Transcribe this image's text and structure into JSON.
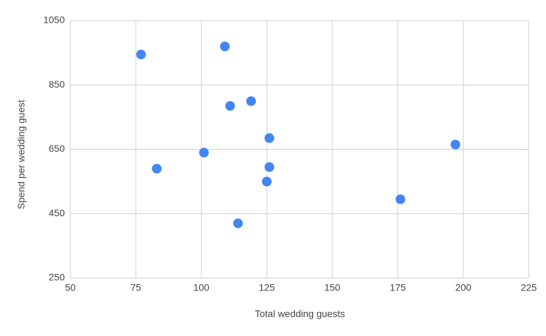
{
  "chart_data": {
    "type": "scatter",
    "x_label": "Total wedding guests",
    "y_label": "Spend per wedding guest",
    "series": [
      {
        "color": "#4285f4",
        "x": [
          77,
          109,
          111,
          119,
          126,
          101,
          83,
          126,
          125,
          114,
          176,
          197
        ],
        "values": [
          945,
          970,
          785,
          800,
          685,
          640,
          590,
          595,
          550,
          420,
          495,
          665
        ]
      }
    ],
    "xlim": [
      50,
      225
    ],
    "xticks": [
      50,
      75,
      100,
      125,
      150,
      175,
      200,
      225
    ],
    "ylim": [
      250,
      1050
    ],
    "yticks": [
      250,
      450,
      650,
      850,
      1050
    ],
    "grid": true
  }
}
